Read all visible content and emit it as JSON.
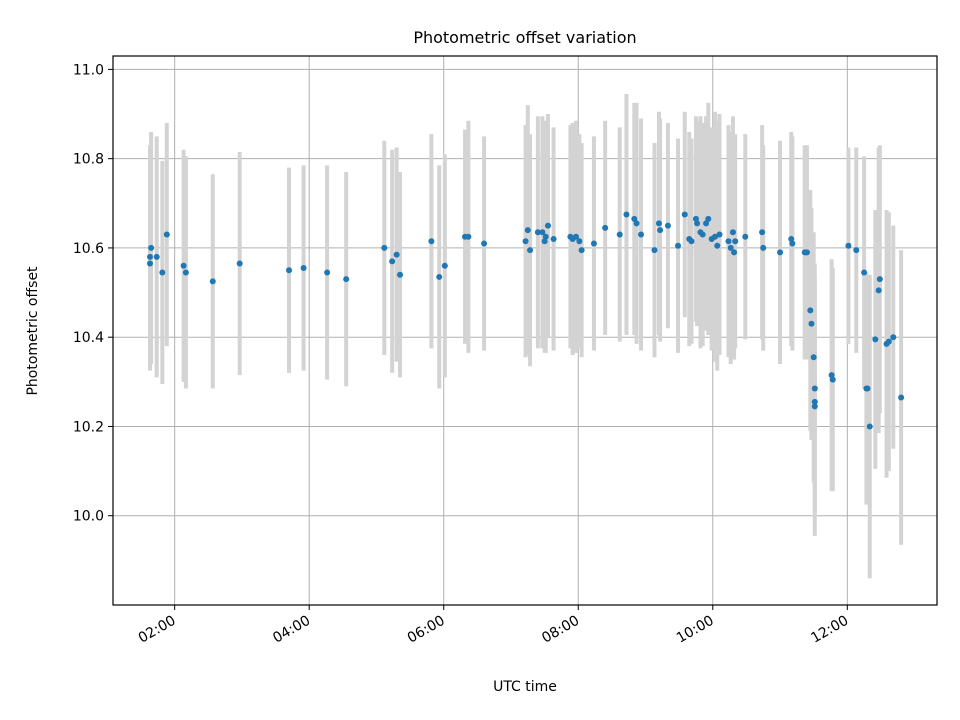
{
  "chart_data": {
    "type": "scatter",
    "title": "Photometric offset variation",
    "xlabel": "UTC time",
    "ylabel": "Photometric offset",
    "x_ticks": [
      "02:00",
      "04:00",
      "06:00",
      "08:00",
      "10:00",
      "12:00"
    ],
    "y_ticks": [
      "10.0",
      "10.2",
      "10.4",
      "10.6",
      "10.8",
      "11.0"
    ],
    "xlim": [
      "01:05",
      "13:20"
    ],
    "ylim": [
      9.8,
      11.03
    ],
    "grid": true,
    "legend": "none",
    "colors": {
      "point": "#1f77b4",
      "errorbar": "#d3d3d3",
      "grid": "#b0b0b0"
    },
    "series": [
      {
        "points": [
          {
            "x": "01:38",
            "y": 10.58,
            "err": 0.25
          },
          {
            "x": "01:38",
            "y": 10.565,
            "err": 0.24
          },
          {
            "x": "01:39",
            "y": 10.6,
            "err": 0.26
          },
          {
            "x": "01:44",
            "y": 10.58,
            "err": 0.27
          },
          {
            "x": "01:49",
            "y": 10.545,
            "err": 0.25
          },
          {
            "x": "01:53",
            "y": 10.63,
            "err": 0.25
          },
          {
            "x": "02:08",
            "y": 10.56,
            "err": 0.26
          },
          {
            "x": "02:10",
            "y": 10.545,
            "err": 0.26
          },
          {
            "x": "02:34",
            "y": 10.525,
            "err": 0.24
          },
          {
            "x": "02:58",
            "y": 10.565,
            "err": 0.25
          },
          {
            "x": "03:42",
            "y": 10.55,
            "err": 0.23
          },
          {
            "x": "03:55",
            "y": 10.555,
            "err": 0.23
          },
          {
            "x": "04:16",
            "y": 10.545,
            "err": 0.24
          },
          {
            "x": "04:33",
            "y": 10.53,
            "err": 0.24
          },
          {
            "x": "05:07",
            "y": 10.6,
            "err": 0.24
          },
          {
            "x": "05:14",
            "y": 10.57,
            "err": 0.25
          },
          {
            "x": "05:18",
            "y": 10.585,
            "err": 0.24
          },
          {
            "x": "05:21",
            "y": 10.54,
            "err": 0.23
          },
          {
            "x": "05:49",
            "y": 10.615,
            "err": 0.24
          },
          {
            "x": "05:56",
            "y": 10.535,
            "err": 0.25
          },
          {
            "x": "06:01",
            "y": 10.56,
            "err": 0.25
          },
          {
            "x": "06:19",
            "y": 10.625,
            "err": 0.24
          },
          {
            "x": "06:22",
            "y": 10.625,
            "err": 0.26
          },
          {
            "x": "06:36",
            "y": 10.61,
            "err": 0.24
          },
          {
            "x": "07:13",
            "y": 10.615,
            "err": 0.26
          },
          {
            "x": "07:15",
            "y": 10.64,
            "err": 0.28
          },
          {
            "x": "07:17",
            "y": 10.595,
            "err": 0.26
          },
          {
            "x": "07:24",
            "y": 10.635,
            "err": 0.26
          },
          {
            "x": "07:28",
            "y": 10.635,
            "err": 0.26
          },
          {
            "x": "07:30",
            "y": 10.615,
            "err": 0.25
          },
          {
            "x": "07:31",
            "y": 10.625,
            "err": 0.26
          },
          {
            "x": "07:33",
            "y": 10.65,
            "err": 0.25
          },
          {
            "x": "07:38",
            "y": 10.62,
            "err": 0.25
          },
          {
            "x": "07:53",
            "y": 10.625,
            "err": 0.25
          },
          {
            "x": "07:55",
            "y": 10.62,
            "err": 0.26
          },
          {
            "x": "07:58",
            "y": 10.625,
            "err": 0.26
          },
          {
            "x": "08:01",
            "y": 10.615,
            "err": 0.24
          },
          {
            "x": "08:03",
            "y": 10.595,
            "err": 0.24
          },
          {
            "x": "08:14",
            "y": 10.61,
            "err": 0.24
          },
          {
            "x": "08:24",
            "y": 10.645,
            "err": 0.24
          },
          {
            "x": "08:37",
            "y": 10.63,
            "err": 0.24
          },
          {
            "x": "08:43",
            "y": 10.675,
            "err": 0.27
          },
          {
            "x": "08:50",
            "y": 10.665,
            "err": 0.26
          },
          {
            "x": "08:52",
            "y": 10.655,
            "err": 0.27
          },
          {
            "x": "08:56",
            "y": 10.63,
            "err": 0.26
          },
          {
            "x": "09:08",
            "y": 10.595,
            "err": 0.24
          },
          {
            "x": "09:12",
            "y": 10.655,
            "err": 0.25
          },
          {
            "x": "09:13",
            "y": 10.64,
            "err": 0.25
          },
          {
            "x": "09:20",
            "y": 10.65,
            "err": 0.23
          },
          {
            "x": "09:29",
            "y": 10.605,
            "err": 0.24
          },
          {
            "x": "09:35",
            "y": 10.675,
            "err": 0.23
          },
          {
            "x": "09:39",
            "y": 10.62,
            "err": 0.24
          },
          {
            "x": "09:41",
            "y": 10.615,
            "err": 0.23
          },
          {
            "x": "09:45",
            "y": 10.665,
            "err": 0.23
          },
          {
            "x": "09:46",
            "y": 10.655,
            "err": 0.23
          },
          {
            "x": "09:49",
            "y": 10.635,
            "err": 0.26
          },
          {
            "x": "09:51",
            "y": 10.63,
            "err": 0.25
          },
          {
            "x": "09:54",
            "y": 10.655,
            "err": 0.24
          },
          {
            "x": "09:56",
            "y": 10.665,
            "err": 0.26
          },
          {
            "x": "09:59",
            "y": 10.62,
            "err": 0.25
          },
          {
            "x": "10:02",
            "y": 10.625,
            "err": 0.28
          },
          {
            "x": "10:04",
            "y": 10.605,
            "err": 0.28
          },
          {
            "x": "10:06",
            "y": 10.63,
            "err": 0.27
          },
          {
            "x": "10:14",
            "y": 10.615,
            "err": 0.26
          },
          {
            "x": "10:16",
            "y": 10.6,
            "err": 0.26
          },
          {
            "x": "10:18",
            "y": 10.635,
            "err": 0.26
          },
          {
            "x": "10:19",
            "y": 10.59,
            "err": 0.24
          },
          {
            "x": "10:20",
            "y": 10.615,
            "err": 0.24
          },
          {
            "x": "10:29",
            "y": 10.625,
            "err": 0.23
          },
          {
            "x": "10:44",
            "y": 10.635,
            "err": 0.24
          },
          {
            "x": "10:45",
            "y": 10.6,
            "err": 0.23
          },
          {
            "x": "11:00",
            "y": 10.59,
            "err": 0.25
          },
          {
            "x": "11:10",
            "y": 10.62,
            "err": 0.24
          },
          {
            "x": "11:11",
            "y": 10.61,
            "err": 0.24
          },
          {
            "x": "11:22",
            "y": 10.59,
            "err": 0.24
          },
          {
            "x": "11:24",
            "y": 10.59,
            "err": 0.24
          },
          {
            "x": "11:27",
            "y": 10.46,
            "err": 0.27
          },
          {
            "x": "11:28",
            "y": 10.43,
            "err": 0.26
          },
          {
            "x": "11:30",
            "y": 10.355,
            "err": 0.28
          },
          {
            "x": "11:31",
            "y": 10.285,
            "err": 0.28
          },
          {
            "x": "11:31",
            "y": 10.255,
            "err": 0.25
          },
          {
            "x": "11:31",
            "y": 10.245,
            "err": 0.29
          },
          {
            "x": "11:46",
            "y": 10.315,
            "err": 0.26
          },
          {
            "x": "11:47",
            "y": 10.305,
            "err": 0.25
          },
          {
            "x": "12:01",
            "y": 10.605,
            "err": 0.22
          },
          {
            "x": "12:08",
            "y": 10.595,
            "err": 0.23
          },
          {
            "x": "12:15",
            "y": 10.545,
            "err": 0.26
          },
          {
            "x": "12:17",
            "y": 10.285,
            "err": 0.26
          },
          {
            "x": "12:18",
            "y": 10.285,
            "err": 0.25
          },
          {
            "x": "12:20",
            "y": 10.2,
            "err": 0.34
          },
          {
            "x": "12:25",
            "y": 10.395,
            "err": 0.29
          },
          {
            "x": "12:28",
            "y": 10.505,
            "err": 0.32
          },
          {
            "x": "12:29",
            "y": 10.53,
            "err": 0.3
          },
          {
            "x": "12:35",
            "y": 10.385,
            "err": 0.3
          },
          {
            "x": "12:37",
            "y": 10.39,
            "err": 0.29
          },
          {
            "x": "12:41",
            "y": 10.4,
            "err": 0.25
          },
          {
            "x": "12:48",
            "y": 10.265,
            "err": 0.33
          }
        ]
      }
    ]
  }
}
